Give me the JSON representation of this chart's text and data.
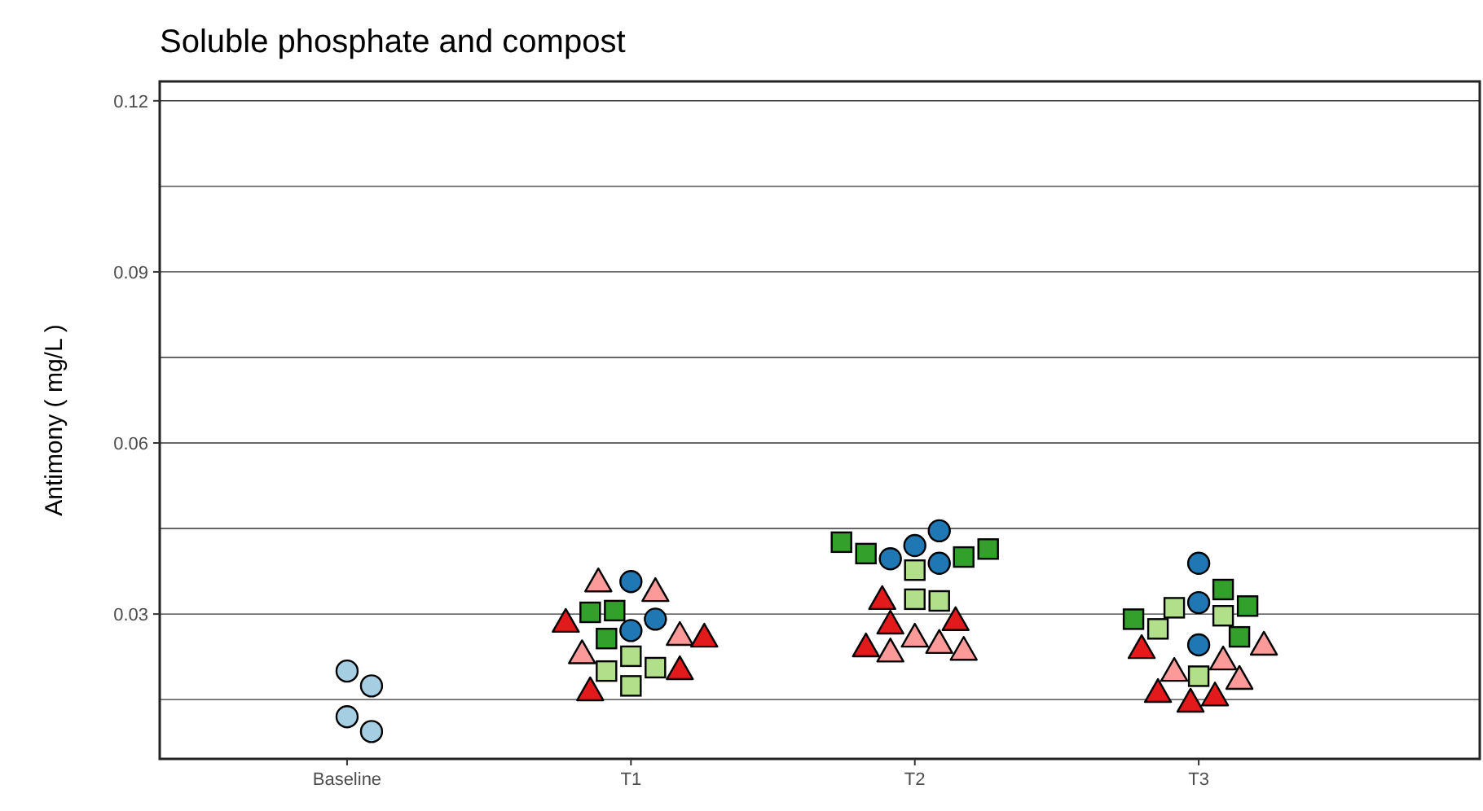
{
  "chart_data": {
    "type": "scatter",
    "title": "Soluble phosphate and compost",
    "ylabel": "Antimony ( mg/L )",
    "categories": [
      "Baseline",
      "T1",
      "T2",
      "T3"
    ],
    "ylim": [
      0.0046,
      0.1234
    ],
    "yticks": [
      {
        "value": 0.015,
        "label": null
      },
      0.03,
      {
        "value": 0.045,
        "label": null
      },
      0.06,
      {
        "value": 0.075,
        "label": null
      },
      0.09,
      {
        "value": 0.105,
        "label": null
      },
      0.12
    ],
    "grid": "y",
    "series": [
      {
        "color": "#a6cee3",
        "marker": "circle",
        "x": [
          "Baseline",
          "Baseline",
          "Baseline",
          "Baseline"
        ],
        "values": [
          0.02,
          0.0174,
          0.012,
          0.0094
        ]
      },
      {
        "color": "#1f78b4",
        "marker": "circle",
        "x": [
          "T1",
          "T1",
          "T1",
          "T2",
          "T2",
          "T2",
          "T2",
          "T3",
          "T3",
          "T3"
        ],
        "values": [
          0.0357,
          0.0271,
          0.0291,
          0.042,
          0.0446,
          0.0389,
          0.0397,
          0.0389,
          0.032,
          0.0246
        ]
      },
      {
        "color": "#b2df8a",
        "marker": "square",
        "x": [
          "T1",
          "T1",
          "T1",
          "T1",
          "T2",
          "T2",
          "T2",
          "T3",
          "T3",
          "T3",
          "T3"
        ],
        "values": [
          0.0226,
          0.0206,
          0.02,
          0.0174,
          0.0377,
          0.0326,
          0.0323,
          0.0297,
          0.0311,
          0.0274,
          0.0191
        ]
      },
      {
        "color": "#33a02c",
        "marker": "square",
        "x": [
          "T1",
          "T1",
          "T1",
          "T2",
          "T2",
          "T2",
          "T2",
          "T3",
          "T3",
          "T3",
          "T3"
        ],
        "values": [
          0.0306,
          0.0303,
          0.0257,
          0.04,
          0.0406,
          0.0414,
          0.0426,
          0.0343,
          0.0314,
          0.0291,
          0.026
        ]
      },
      {
        "color": "#fb9a99",
        "marker": "triangle",
        "x": [
          "T1",
          "T1",
          "T1",
          "T1",
          "T2",
          "T2",
          "T2",
          "T2",
          "T3",
          "T3",
          "T3",
          "T3"
        ],
        "values": [
          0.034,
          0.0357,
          0.0263,
          0.0231,
          0.026,
          0.0249,
          0.0234,
          0.0237,
          0.0246,
          0.022,
          0.02,
          0.0186
        ]
      },
      {
        "color": "#e31a1c",
        "marker": "triangle",
        "x": [
          "T1",
          "T1",
          "T1",
          "T1",
          "T2",
          "T2",
          "T2",
          "T2",
          "T3",
          "T3",
          "T3",
          "T3"
        ],
        "values": [
          0.026,
          0.0286,
          0.0203,
          0.0166,
          0.0326,
          0.0289,
          0.0283,
          0.0243,
          0.024,
          0.0163,
          0.0157,
          0.0146
        ]
      }
    ]
  }
}
